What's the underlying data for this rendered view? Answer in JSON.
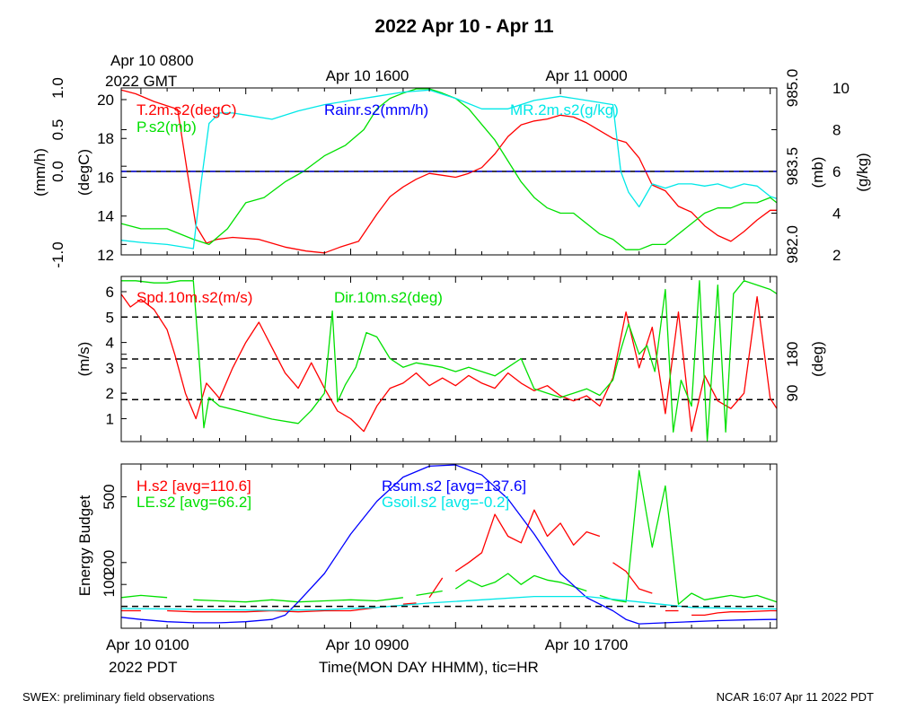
{
  "title": "2022 Apr 10 - Apr 11",
  "header": {
    "gmt_start_line1": "Apr 10 0800",
    "gmt_start_line2": "2022 GMT",
    "gmt_tick2": "Apr 10 1600",
    "gmt_tick3": "Apr 11 0000"
  },
  "footer": {
    "left": "SWEX: preliminary field observations",
    "right": "NCAR 16:07 Apr 11 2022 PDT",
    "x_tick1": "Apr 10 0100",
    "x_tick2": "Apr 10 0900",
    "x_tick3": "Apr 10 1700",
    "x_year": "2022 PDT",
    "xlabel": "Time(MON DAY HHMM), tic=HR"
  },
  "colors": {
    "red": "#ff0000",
    "green": "#00e000",
    "blue": "#0000ff",
    "cyan": "#00e8e8",
    "black": "#000000"
  },
  "chart_data": [
    {
      "type": "line",
      "panel": "state",
      "x_range_hours_pdt": [
        0.25,
        25.25
      ],
      "axes": {
        "rain": {
          "label": "(mm/h)",
          "ticks": [
            "-1.0",
            "0.0",
            "0.5",
            "1.0"
          ],
          "range": [
            -1.0,
            1.0
          ]
        },
        "temp": {
          "label": "(degC)",
          "ticks": [
            "12",
            "14",
            "16",
            "18",
            "20"
          ],
          "range": [
            12,
            20.6
          ]
        },
        "pres": {
          "label": "(mb)",
          "ticks": [
            "982.0",
            "983.5",
            "985.0"
          ],
          "range": [
            981.8,
            985.0
          ]
        },
        "mr": {
          "label": "(g/kg)",
          "ticks": [
            "2",
            "4",
            "6",
            "8",
            "10"
          ],
          "range": [
            2,
            10
          ]
        }
      },
      "series": [
        {
          "name": "T.2m.s2(degC)",
          "axis": "temp",
          "color": "#ff0000",
          "x": [
            0.25,
            0.8,
            1.5,
            2.4,
            2.8,
            3.1,
            3.5,
            3.9,
            4.5,
            5.5,
            6.5,
            7.3,
            8,
            8.6,
            9.3,
            10,
            10.5,
            11,
            11.5,
            12,
            12.5,
            13,
            13.5,
            14,
            14.5,
            15,
            15.5,
            16,
            16.5,
            17,
            17.5,
            18,
            18.5,
            19,
            19.5,
            20,
            20.5,
            21,
            21.5,
            22,
            22.5,
            23,
            23.5,
            24,
            24.5,
            25,
            25.25
          ],
          "y": [
            20.5,
            20.3,
            19.9,
            19.5,
            16,
            13.5,
            12.6,
            12.8,
            12.9,
            12.8,
            12.4,
            12.2,
            12.1,
            12.4,
            12.7,
            14.1,
            15,
            15.5,
            15.9,
            16.2,
            16.1,
            16.0,
            16.2,
            16.5,
            17.2,
            18.1,
            18.7,
            18.9,
            19.0,
            19.2,
            19.1,
            18.8,
            18.4,
            18.0,
            17.8,
            17.0,
            15.6,
            15.3,
            14.5,
            14.2,
            13.5,
            13.0,
            12.7,
            13.2,
            13.8,
            14.3,
            14.3
          ]
        },
        {
          "name": "P.s2(mb)",
          "axis": "pres",
          "color": "#00e000",
          "x": [
            0.25,
            1,
            2,
            3,
            3.6,
            4.3,
            5,
            5.7,
            6.5,
            7.2,
            8,
            8.8,
            9.5,
            10,
            10.5,
            11,
            11.5,
            12,
            12.5,
            13,
            13.5,
            14,
            14.5,
            15,
            15.5,
            16,
            16.5,
            17,
            17.5,
            18,
            18.5,
            19,
            19.5,
            20,
            20.5,
            21,
            21.5,
            22,
            22.5,
            23,
            23.5,
            24,
            24.5,
            25,
            25.25
          ],
          "y": [
            982.4,
            982.3,
            982.3,
            982.1,
            982.0,
            982.3,
            982.8,
            982.9,
            983.2,
            983.4,
            983.7,
            983.9,
            984.2,
            984.6,
            984.8,
            984.9,
            985.0,
            985.0,
            984.9,
            984.8,
            984.6,
            984.3,
            984.0,
            983.6,
            983.2,
            982.9,
            982.7,
            982.6,
            982.6,
            982.4,
            982.2,
            982.1,
            981.9,
            981.9,
            982.0,
            982.0,
            982.2,
            982.4,
            982.6,
            982.7,
            982.7,
            982.8,
            982.8,
            982.9,
            982.8
          ]
        },
        {
          "name": "MR.2m.s2(g/kg)",
          "axis": "mr",
          "color": "#00e8e8",
          "x": [
            0.25,
            1,
            2,
            3,
            3.3,
            3.6,
            4,
            4.5,
            5,
            6,
            7,
            8,
            9,
            10,
            11,
            12,
            13,
            14,
            15,
            16,
            17,
            18,
            19,
            19.3,
            19.6,
            20,
            20.5,
            21,
            21.5,
            22,
            22.5,
            23,
            23.5,
            24,
            24.5,
            25,
            25.25
          ],
          "y": [
            2.7,
            2.6,
            2.5,
            2.3,
            5.5,
            8.3,
            8.8,
            8.8,
            8.7,
            8.5,
            8.9,
            9.2,
            9.4,
            9.6,
            9.8,
            9.9,
            9.5,
            9.0,
            9.0,
            9.4,
            9.6,
            9.4,
            9.2,
            6.0,
            5.0,
            4.3,
            5.4,
            5.2,
            5.4,
            5.4,
            5.3,
            5.4,
            5.2,
            5.4,
            5.3,
            4.8,
            4.7
          ]
        },
        {
          "name": "Rainr.s2(mm/h)",
          "axis": "rain",
          "color": "#0000ff",
          "x": [
            0.25,
            25.25
          ],
          "y": [
            0,
            0
          ]
        }
      ]
    },
    {
      "type": "line",
      "panel": "wind",
      "x_range_hours_pdt": [
        0.25,
        25.25
      ],
      "axes": {
        "spd": {
          "label": "(m/s)",
          "ticks": [
            "1",
            "2",
            "3",
            "4",
            "5",
            "6"
          ],
          "range": [
            0.1,
            6.6
          ]
        },
        "dir": {
          "label": "(deg)",
          "ticks": [
            "90",
            "180"
          ],
          "range": [
            -22,
            360
          ]
        }
      },
      "reference_lines_spd": [
        1.75,
        3.35,
        5.0
      ],
      "series": [
        {
          "name": "Spd.10m.s2(m/s)",
          "axis": "spd",
          "color": "#ff0000",
          "x": [
            0.25,
            0.6,
            1,
            1.5,
            2,
            2.3,
            2.7,
            3.1,
            3.5,
            4,
            4.5,
            5,
            5.5,
            6,
            6.5,
            7,
            7.5,
            8,
            8.5,
            9,
            9.5,
            10,
            10.5,
            11,
            11.5,
            12,
            12.5,
            13,
            13.5,
            14,
            14.5,
            15,
            15.5,
            16,
            16.5,
            17,
            17.5,
            18,
            18.5,
            19,
            19.5,
            20,
            20.5,
            21,
            21.5,
            22,
            22.5,
            23,
            23.5,
            24,
            24.5,
            25,
            25.25
          ],
          "y": [
            5.9,
            5.4,
            5.7,
            5.3,
            4.5,
            3.5,
            2.0,
            1.0,
            2.4,
            1.8,
            3.0,
            4.0,
            4.8,
            3.8,
            2.8,
            2.2,
            3.2,
            2.2,
            1.3,
            1.0,
            0.5,
            1.5,
            2.2,
            2.4,
            2.8,
            2.3,
            2.6,
            2.3,
            2.7,
            2.4,
            2.2,
            2.8,
            2.4,
            2.1,
            2.3,
            1.9,
            1.7,
            1.9,
            1.5,
            2.6,
            5.2,
            3.0,
            4.6,
            1.2,
            5.2,
            0.5,
            2.7,
            1.7,
            1.4,
            2.0,
            5.8,
            1.8,
            1.4
          ]
        },
        {
          "name": "Dir.10m.s2(deg)",
          "axis": "dir",
          "color": "#00e000",
          "x": [
            0.25,
            0.8,
            1.5,
            2,
            2.5,
            3,
            3.2,
            3.4,
            3.6,
            4,
            5,
            6,
            7,
            7.5,
            8,
            8.3,
            8.5,
            8.8,
            9.2,
            9.6,
            10,
            10.5,
            11,
            11.5,
            12,
            12.5,
            13,
            13.5,
            14,
            14.5,
            15,
            15.5,
            16,
            16.5,
            17,
            17.5,
            18,
            18.5,
            19,
            19.3,
            19.6,
            20,
            20.3,
            20.6,
            21,
            21.3,
            21.6,
            22,
            22.3,
            22.6,
            23,
            23.3,
            23.6,
            24,
            24.5,
            25,
            25.25
          ],
          "y": [
            350,
            350,
            345,
            345,
            350,
            350,
            190,
            10,
            80,
            60,
            45,
            30,
            20,
            50,
            90,
            280,
            70,
            110,
            150,
            230,
            220,
            170,
            150,
            160,
            155,
            150,
            140,
            150,
            140,
            130,
            150,
            170,
            100,
            90,
            80,
            90,
            100,
            85,
            120,
            190,
            250,
            180,
            200,
            140,
            330,
            0,
            120,
            60,
            350,
            -20,
            340,
            0,
            320,
            350,
            340,
            330,
            320
          ]
        }
      ]
    },
    {
      "type": "line",
      "panel": "energy",
      "x_range_hours_pdt": [
        0.25,
        25.25
      ],
      "axes": {
        "e": {
          "label": "Energy Budget",
          "ticks": [
            "100",
            "200",
            "500"
          ],
          "range": [
            -100,
            650
          ]
        }
      },
      "reference_lines_e": [
        0
      ],
      "series": [
        {
          "name": "H.s2 [avg=110.6]",
          "color": "#ff0000",
          "x": [
            0.25,
            1,
            2,
            3,
            4,
            5,
            6,
            7,
            8,
            9,
            10,
            11,
            11.5,
            12,
            12.5,
            13,
            13.5,
            14,
            14.5,
            15,
            15.5,
            16,
            16.5,
            17,
            17.5,
            18,
            18.5,
            19,
            19.5,
            20,
            20.5,
            21,
            21.5,
            22,
            22.5,
            23,
            23.5,
            24,
            25,
            25.25
          ],
          "y": [
            -20,
            -20,
            -20,
            -25,
            -25,
            -25,
            -20,
            -25,
            -20,
            -20,
            -5,
            10,
            15,
            40,
            130,
            160,
            200,
            245,
            420,
            320,
            290,
            440,
            320,
            380,
            280,
            340,
            320,
            200,
            160,
            80,
            60,
            -20,
            -20,
            -40,
            -40,
            -30,
            -25,
            -25,
            -20,
            -20
          ],
          "gaps_after_index": [
            1,
            10,
            12,
            14,
            26,
            30,
            32
          ]
        },
        {
          "name": "LE.s2 [avg=66.2]",
          "color": "#00e000",
          "x": [
            0.25,
            1,
            2,
            3,
            4,
            5,
            6,
            7,
            8,
            9,
            10,
            11,
            11.5,
            12,
            12.5,
            13,
            13.5,
            14,
            14.5,
            15,
            15.5,
            16,
            16.5,
            17,
            17.5,
            18,
            18.5,
            19,
            19.5,
            20,
            20.5,
            21,
            21.5,
            22,
            22.5,
            23,
            23.5,
            24,
            24.5,
            25,
            25.25
          ],
          "y": [
            40,
            50,
            40,
            30,
            25,
            20,
            30,
            20,
            25,
            30,
            25,
            40,
            50,
            60,
            70,
            80,
            120,
            90,
            110,
            150,
            100,
            140,
            120,
            110,
            90,
            70,
            50,
            30,
            20,
            620,
            270,
            550,
            10,
            60,
            30,
            40,
            50,
            40,
            50,
            30,
            20
          ],
          "gaps_after_index": [
            2,
            11,
            14,
            25
          ]
        },
        {
          "name": "Rsum.s2 [avg=137.6]",
          "color": "#0000ff",
          "x": [
            0.25,
            1,
            2,
            3,
            4,
            5,
            6,
            6.5,
            7,
            8,
            9,
            10,
            11,
            12,
            13,
            14,
            15,
            16,
            17,
            18,
            19,
            19.5,
            20,
            21,
            22,
            23,
            24,
            25,
            25.25
          ],
          "y": [
            -50,
            -60,
            -70,
            -75,
            -75,
            -70,
            -60,
            -40,
            20,
            150,
            330,
            480,
            590,
            640,
            650,
            600,
            490,
            330,
            150,
            40,
            -20,
            -60,
            -80,
            -75,
            -70,
            -65,
            -62,
            -60,
            -60
          ]
        },
        {
          "name": "Gsoil.s2 [avg=-0.2]",
          "color": "#00e8e8",
          "x": [
            0.25,
            2,
            4,
            6,
            8,
            10,
            12,
            14,
            16,
            18,
            20,
            22,
            24,
            25.25
          ],
          "y": [
            -10,
            -12,
            -15,
            -18,
            -15,
            -5,
            15,
            30,
            45,
            45,
            20,
            -5,
            -10,
            -12
          ]
        }
      ]
    }
  ]
}
